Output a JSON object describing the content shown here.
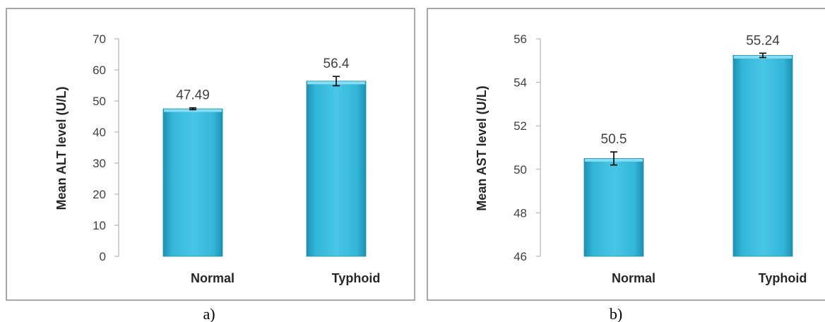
{
  "colors": {
    "bar": "#33B6D8",
    "bar_dark": "#1E90B2",
    "bar_light": "#8ADCF0",
    "frame": "#8C8C8C",
    "axis": "#A6A6A6"
  },
  "chart_data": [
    {
      "type": "bar",
      "panel_label": "a)",
      "ylabel": "Mean ALT level (U/L)",
      "categories": [
        "Normal",
        "Typhoid"
      ],
      "values": [
        47.49,
        56.4
      ],
      "value_labels": [
        "47.49",
        "56.4"
      ],
      "error": [
        0.3,
        1.5
      ],
      "ylim": [
        0,
        70
      ],
      "yticks": [
        0,
        10,
        20,
        30,
        40,
        50,
        60,
        70
      ],
      "grid": false,
      "legend": "none"
    },
    {
      "type": "bar",
      "panel_label": "b)",
      "ylabel": "Mean AST level (U/L)",
      "categories": [
        "Normal",
        "Typhoid"
      ],
      "values": [
        50.5,
        55.24
      ],
      "value_labels": [
        "50.5",
        "55.24"
      ],
      "error": [
        0.3,
        0.1
      ],
      "ylim": [
        46,
        56
      ],
      "yticks": [
        46,
        48,
        50,
        52,
        54,
        56
      ],
      "grid": false,
      "legend": "none"
    }
  ]
}
